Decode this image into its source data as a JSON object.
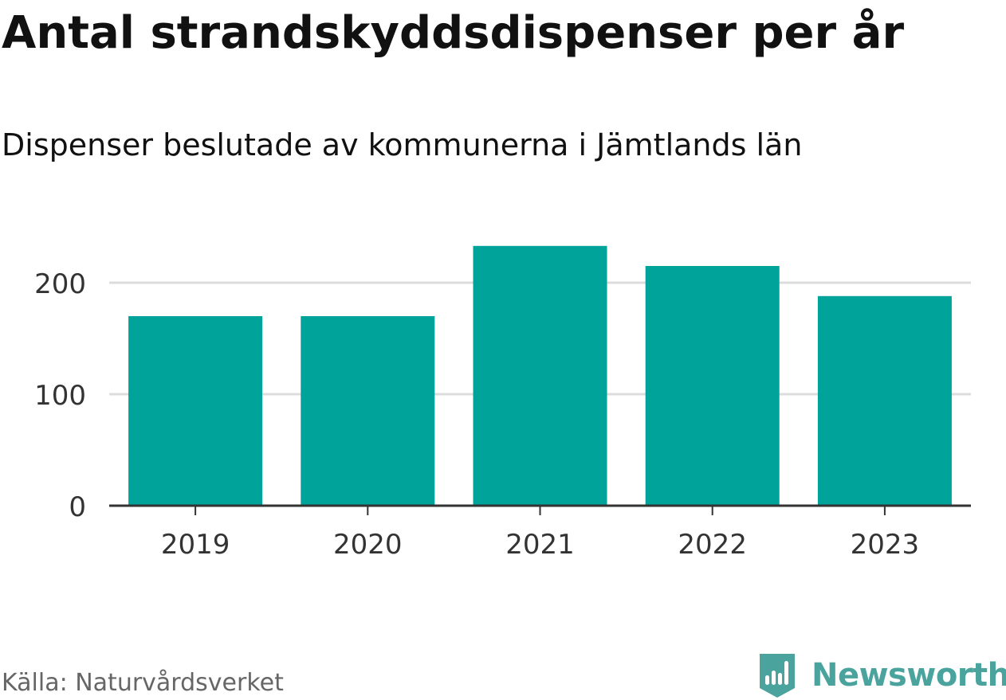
{
  "title": "Antal strandskyddsdispenser per år",
  "subtitle": "Dispenser beslutade av kommunerna i Jämtlands län",
  "source": "Källa: Naturvårdsverket",
  "brand": {
    "name": "Newsworthy",
    "color": "#4aa49d",
    "icon": "newsworthy-logo-icon"
  },
  "colors": {
    "bar": "#00a39a",
    "grid": "#dcdcdc",
    "axis": "#333333",
    "text": "#111111"
  },
  "chart_data": {
    "type": "bar",
    "title": "Antal strandskyddsdispenser per år",
    "subtitle": "Dispenser beslutade av kommunerna i Jämtlands län",
    "categories": [
      "2019",
      "2020",
      "2021",
      "2022",
      "2023"
    ],
    "values": [
      170,
      170,
      233,
      215,
      188
    ],
    "yticks": [
      0,
      100,
      200
    ],
    "ylim": [
      0,
      240
    ],
    "xlabel": "",
    "ylabel": "",
    "grid": true,
    "legend": "none"
  }
}
